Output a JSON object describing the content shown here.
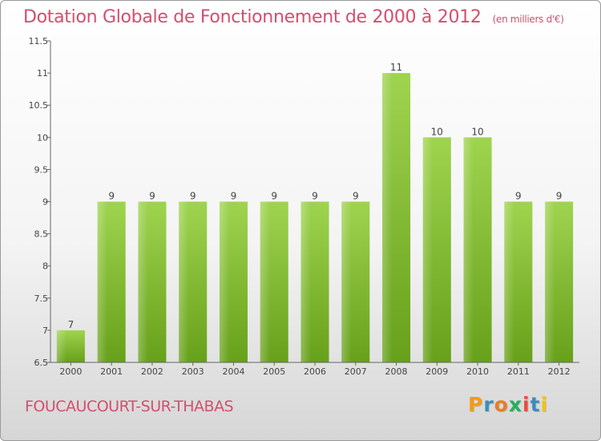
{
  "chart_data": {
    "type": "bar",
    "title": "Dotation Globale de Fonctionnement de 2000 à 2012",
    "subtitle": "(en milliers d'€)",
    "categories": [
      "2000",
      "2001",
      "2002",
      "2003",
      "2004",
      "2005",
      "2006",
      "2007",
      "2008",
      "2009",
      "2010",
      "2011",
      "2012"
    ],
    "values": [
      7,
      9,
      9,
      9,
      9,
      9,
      9,
      9,
      11,
      10,
      10,
      9,
      9
    ],
    "value_labels": [
      "7",
      "9",
      "9",
      "9",
      "9",
      "9",
      "9",
      "9",
      "11",
      "10",
      "10",
      "9",
      "9"
    ],
    "xlabel": "",
    "ylabel": "",
    "ylim": [
      6.5,
      11.5
    ],
    "yticks": [
      6.5,
      7,
      7.5,
      8,
      8.5,
      9,
      9.5,
      10,
      10.5,
      11,
      11.5
    ],
    "ytick_labels": [
      "6.5",
      "7",
      "7.5",
      "8",
      "8.5",
      "9",
      "9.5",
      "10",
      "10.5",
      "11",
      "11.5"
    ],
    "grid": false,
    "bar_color": "#8cc63f"
  },
  "footer": {
    "commune": "FOUCAUCOURT-SUR-THABAS",
    "logo_letters": [
      "P",
      "r",
      "o",
      "x",
      "i",
      "t",
      "i"
    ],
    "logo_colors": [
      "#f39c12",
      "#3c8dbc",
      "#e67e22",
      "#27ae60",
      "#e74c3c",
      "#3c8dbc",
      "#f1c40f"
    ]
  }
}
